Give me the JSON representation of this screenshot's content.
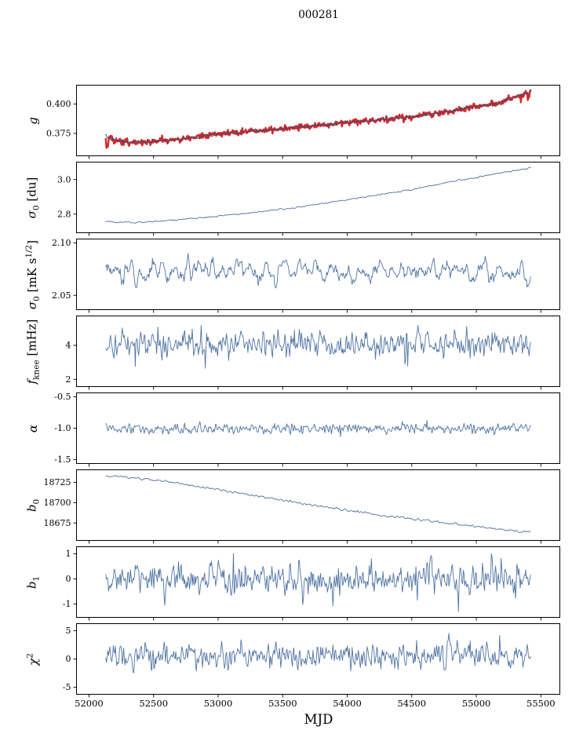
{
  "chart_data": {
    "type": "line",
    "title": "000281",
    "xlabel": "MJD",
    "legend": "none",
    "grid": false,
    "xlim": [
      51900,
      55650
    ],
    "x_data_range": [
      52130,
      55420
    ],
    "x_ticks": [
      52000,
      52500,
      53000,
      53500,
      54000,
      54500,
      55000,
      55500
    ],
    "x_tick_labels": [
      "52000",
      "52500",
      "53000",
      "53500",
      "54000",
      "54500",
      "55000",
      "55500"
    ],
    "n_points": 620,
    "colors": {
      "blue": "#4f73a3",
      "dark_blue": "#35507a",
      "red": "#d62728",
      "axis": "#000000"
    },
    "panels": [
      {
        "id": "g",
        "ylabel": "g",
        "ylabel_segments": [
          {
            "t": "g",
            "v": "i"
          }
        ],
        "ylim": [
          0.3555,
          0.4165
        ],
        "yticks": [
          0.375,
          0.4
        ],
        "ytick_labels": [
          "0.375",
          "0.400"
        ],
        "series": [
          {
            "name": "g-measured-red",
            "color": "#d62728",
            "width": 2.4,
            "seed": 8,
            "noise": 0.0013,
            "smooth": 1,
            "anchors": [
              [
                52130,
                0.372
              ],
              [
                52200,
                0.3692
              ],
              [
                52300,
                0.3672
              ],
              [
                52450,
                0.3678
              ],
              [
                52700,
                0.37
              ],
              [
                53000,
                0.3745
              ],
              [
                53300,
                0.3772
              ],
              [
                53600,
                0.38
              ],
              [
                53900,
                0.383
              ],
              [
                54200,
                0.3862
              ],
              [
                54500,
                0.3892
              ],
              [
                54800,
                0.394
              ],
              [
                55000,
                0.398
              ],
              [
                55150,
                0.4
              ],
              [
                55300,
                0.406
              ],
              [
                55420,
                0.4105
              ]
            ],
            "spikes": [
              [
                52136,
                -0.0085
              ],
              [
                52141,
                -0.005
              ],
              [
                52146,
                -0.0078
              ],
              [
                52152,
                -0.004
              ],
              [
                55345,
                -0.0045
              ],
              [
                55400,
                -0.006
              ],
              [
                55410,
                -0.0042
              ]
            ]
          },
          {
            "name": "g-model-blue",
            "color": "#35507a",
            "width": 1.0,
            "seed": 7,
            "noise": 0.00085,
            "smooth": 2,
            "anchors": [
              [
                52130,
                0.372
              ],
              [
                52200,
                0.3692
              ],
              [
                52300,
                0.3672
              ],
              [
                52450,
                0.3678
              ],
              [
                52700,
                0.37
              ],
              [
                53000,
                0.3745
              ],
              [
                53300,
                0.3772
              ],
              [
                53600,
                0.38
              ],
              [
                53900,
                0.383
              ],
              [
                54200,
                0.3862
              ],
              [
                54500,
                0.3892
              ],
              [
                54800,
                0.394
              ],
              [
                55000,
                0.398
              ],
              [
                55150,
                0.4
              ],
              [
                55300,
                0.406
              ],
              [
                55420,
                0.4105
              ]
            ],
            "spikes": []
          }
        ]
      },
      {
        "id": "sigma0-du",
        "ylabel": "σ₀ [du]",
        "ylabel_segments": [
          {
            "t": "σ",
            "v": "i"
          },
          {
            "t": "0",
            "v": "sub"
          },
          {
            "t": " [du]"
          }
        ],
        "ylim": [
          2.69,
          3.103
        ],
        "yticks": [
          2.8,
          3.0
        ],
        "ytick_labels": [
          "2.8",
          "3.0"
        ],
        "series": [
          {
            "name": "sigma0-du-line",
            "color": "#4f73a3",
            "width": 0.9,
            "seed": 21,
            "noise": 0.0035,
            "smooth": 3,
            "anchors": [
              [
                52130,
                2.761
              ],
              [
                52220,
                2.752
              ],
              [
                52350,
                2.751
              ],
              [
                52500,
                2.757
              ],
              [
                52700,
                2.768
              ],
              [
                53000,
                2.788
              ],
              [
                53300,
                2.812
              ],
              [
                53600,
                2.838
              ],
              [
                53900,
                2.872
              ],
              [
                54200,
                2.906
              ],
              [
                54500,
                2.942
              ],
              [
                54800,
                2.986
              ],
              [
                55000,
                3.013
              ],
              [
                55200,
                3.04
              ],
              [
                55420,
                3.068
              ]
            ],
            "spikes": []
          }
        ]
      },
      {
        "id": "sigma0-mK",
        "ylabel": "σ₀ [mK s¹ᐟ²]",
        "ylabel_segments": [
          {
            "t": "σ",
            "v": "i"
          },
          {
            "t": "0",
            "v": "sub"
          },
          {
            "t": " [mK s"
          },
          {
            "t": "1/2",
            "v": "sup"
          },
          {
            "t": "]"
          }
        ],
        "ylim": [
          2.036,
          2.104
        ],
        "yticks": [
          2.05,
          2.1
        ],
        "ytick_labels": [
          "2.05",
          "2.10"
        ],
        "series": [
          {
            "name": "sigma0-mK-line",
            "color": "#4f73a3",
            "width": 0.9,
            "seed": 31,
            "noise": 0.012,
            "smooth": 5,
            "anchors": [
              [
                52130,
                2.072
              ],
              [
                53000,
                2.074
              ],
              [
                54000,
                2.073
              ],
              [
                54600,
                2.076
              ],
              [
                55000,
                2.072
              ],
              [
                55420,
                2.07
              ]
            ],
            "spikes": []
          }
        ]
      },
      {
        "id": "fknee",
        "ylabel": "f_knee [mHz]",
        "ylabel_segments": [
          {
            "t": "f",
            "v": "i"
          },
          {
            "t": "knee",
            "v": "sub"
          },
          {
            "t": " [mHz]"
          }
        ],
        "ylim": [
          1.55,
          5.75
        ],
        "yticks": [
          2,
          4
        ],
        "ytick_labels": [
          "2",
          "4"
        ],
        "series": [
          {
            "name": "fknee-line",
            "color": "#4f73a3",
            "width": 0.9,
            "seed": 41,
            "noise": 0.54,
            "smooth": 2,
            "anchors": [
              [
                52130,
                4.12
              ],
              [
                55420,
                4.05
              ]
            ],
            "spikes": [
              [
                52360,
                -1.3
              ],
              [
                53080,
                -1.2
              ],
              [
                53590,
                1.2
              ],
              [
                54470,
                -1.15
              ],
              [
                55120,
                1.1
              ]
            ]
          }
        ]
      },
      {
        "id": "alpha",
        "ylabel": "α",
        "ylabel_segments": [
          {
            "t": "α",
            "v": "i"
          }
        ],
        "ylim": [
          -1.57,
          -0.43
        ],
        "yticks": [
          -1.5,
          -1.0,
          -0.5
        ],
        "ytick_labels": [
          "-1.5",
          "-1.0",
          "-0.5"
        ],
        "series": [
          {
            "name": "alpha-line",
            "color": "#4f73a3",
            "width": 0.9,
            "seed": 51,
            "noise": 0.054,
            "smooth": 2,
            "anchors": [
              [
                52130,
                -1.02
              ],
              [
                55420,
                -1.01
              ]
            ],
            "spikes": [
              [
                53950,
                -0.12
              ],
              [
                54620,
                0.1
              ]
            ]
          }
        ]
      },
      {
        "id": "b0",
        "ylabel": "b₀",
        "ylabel_segments": [
          {
            "t": "b",
            "v": "i"
          },
          {
            "t": "0",
            "v": "sub"
          }
        ],
        "ylim": [
          18653,
          18741
        ],
        "yticks": [
          18675,
          18700,
          18725
        ],
        "ytick_labels": [
          "18675",
          "18700",
          "18725"
        ],
        "series": [
          {
            "name": "b0-line",
            "color": "#4f73a3",
            "width": 0.9,
            "seed": 61,
            "noise": 1.2,
            "smooth": 3,
            "anchors": [
              [
                52130,
                18733
              ],
              [
                52250,
                18732
              ],
              [
                52450,
                18729
              ],
              [
                52700,
                18724
              ],
              [
                53000,
                18716
              ],
              [
                53300,
                18708
              ],
              [
                53600,
                18700
              ],
              [
                53900,
                18693
              ],
              [
                54200,
                18686
              ],
              [
                54500,
                18680
              ],
              [
                54800,
                18674
              ],
              [
                55100,
                18669
              ],
              [
                55300,
                18665
              ],
              [
                55420,
                18663
              ]
            ],
            "spikes": []
          }
        ]
      },
      {
        "id": "b1",
        "ylabel": "b₁",
        "ylabel_segments": [
          {
            "t": "b",
            "v": "i"
          },
          {
            "t": "1",
            "v": "sub"
          }
        ],
        "ylim": [
          -1.55,
          1.3
        ],
        "yticks": [
          -1,
          0,
          1
        ],
        "ytick_labels": [
          "-1",
          "0",
          "1"
        ],
        "series": [
          {
            "name": "b1-line",
            "color": "#4f73a3",
            "width": 0.9,
            "seed": 71,
            "noise": 0.44,
            "smooth": 2,
            "anchors": [
              [
                52130,
                0.0
              ],
              [
                55420,
                0.0
              ]
            ],
            "spikes": [
              [
                54860,
                -1.0
              ],
              [
                53120,
                0.9
              ]
            ]
          }
        ]
      },
      {
        "id": "chi2",
        "ylabel": "χ²",
        "ylabel_segments": [
          {
            "t": "χ",
            "v": "i"
          },
          {
            "t": "2",
            "v": "sup"
          }
        ],
        "ylim": [
          -6.3,
          6.3
        ],
        "yticks": [
          -5,
          0,
          5
        ],
        "ytick_labels": [
          "-5",
          "0",
          "5"
        ],
        "series": [
          {
            "name": "chi2-line",
            "color": "#4f73a3",
            "width": 0.9,
            "seed": 81,
            "noise": 1.5,
            "smooth": 2,
            "anchors": [
              [
                52130,
                0.55
              ],
              [
                55420,
                0.75
              ]
            ],
            "spikes": [
              [
                54950,
                2.5
              ],
              [
                55180,
                2.2
              ]
            ]
          }
        ]
      }
    ]
  }
}
